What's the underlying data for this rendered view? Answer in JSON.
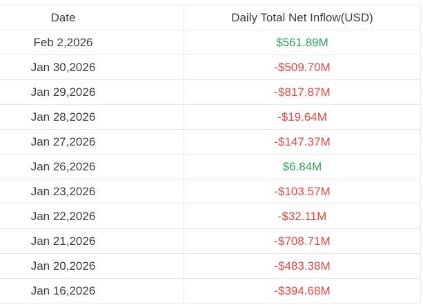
{
  "table": {
    "columns": [
      {
        "label": "Date"
      },
      {
        "label": "Daily Total Net Inflow(USD)"
      }
    ],
    "rows": [
      {
        "date": "Feb 2,2026",
        "value": "$561.89M"
      },
      {
        "date": "Jan 30,2026",
        "value": "-$509.70M"
      },
      {
        "date": "Jan 29,2026",
        "value": "-$817.87M"
      },
      {
        "date": "Jan 28,2026",
        "value": "-$19.64M"
      },
      {
        "date": "Jan 27,2026",
        "value": "-$147.37M"
      },
      {
        "date": "Jan 26,2026",
        "value": "$6.84M"
      },
      {
        "date": "Jan 23,2026",
        "value": "-$103.57M"
      },
      {
        "date": "Jan 22,2026",
        "value": "-$32.11M"
      },
      {
        "date": "Jan 21,2026",
        "value": "-$708.71M"
      },
      {
        "date": "Jan 20,2026",
        "value": "-$483.38M"
      },
      {
        "date": "Jan 16,2026",
        "value": "-$394.68M"
      }
    ],
    "colors": {
      "positive": "#31a05f",
      "negative": "#e0483f",
      "header_text": "#3d3d3d",
      "body_text": "#3d3d3d",
      "border": "#e9e9e9"
    }
  }
}
